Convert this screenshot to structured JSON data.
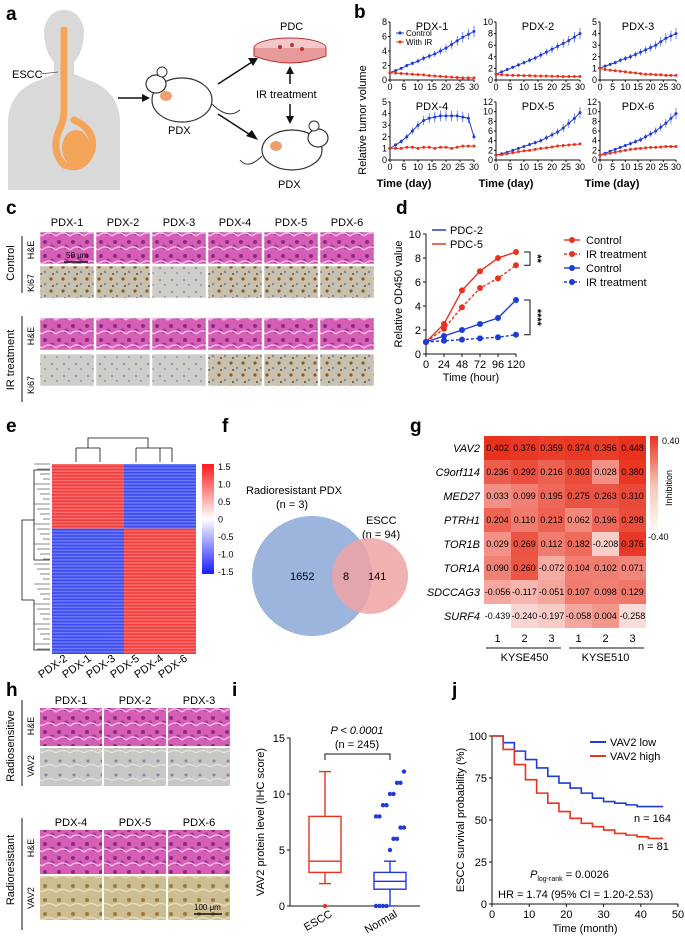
{
  "panel_labels": [
    "a",
    "b",
    "c",
    "d",
    "e",
    "f",
    "g",
    "h",
    "i",
    "j"
  ],
  "a": {
    "escc": "ESCC",
    "pdx": "PDX",
    "pdc": "PDC",
    "ir": "IR treatment",
    "pdx2": "PDX"
  },
  "colors": {
    "blue": "#1f3bd6",
    "red": "#e8321e",
    "venn_blue": "#9db5dc",
    "venn_red": "#efa3a3"
  },
  "b": {
    "ylabel": "Relative tumor volume",
    "xlabel": "Time (day)",
    "legend": [
      "Control",
      "With IR"
    ]
  },
  "c": {
    "cols": [
      "PDX-1",
      "PDX-2",
      "PDX-3",
      "PDX-4",
      "PDX-5",
      "PDX-6"
    ],
    "groups": [
      "Control",
      "IR treatment"
    ],
    "rows": [
      "H&E",
      "Ki67"
    ],
    "scale": "50 μm"
  },
  "e": {
    "cols": [
      "PDX-2",
      "PDX-1",
      "PDX-3",
      "PDX-5",
      "PDX-4",
      "PDX-6"
    ],
    "scale_ticks": [
      "1.5",
      "1.0",
      "0.5",
      "0",
      "-0.5",
      "-1.0",
      "-1.5"
    ]
  },
  "f": {
    "left_title": "Radioresistant PDX",
    "left_n": "(n = 3)",
    "right_title": "ESCC",
    "right_n": "(n = 94)",
    "left_only": "1652",
    "overlap": "8",
    "right_only": "141"
  },
  "g": {
    "genes": [
      "VAV2",
      "C9orf114",
      "MED27",
      "PTRH1",
      "TOR1B",
      "TOR1A",
      "SDCCAG3",
      "SURF4"
    ],
    "values": [
      [
        0.402,
        0.376,
        0.359,
        0.374,
        0.356,
        0.448
      ],
      [
        0.236,
        0.292,
        0.216,
        0.303,
        0.028,
        0.38
      ],
      [
        0.033,
        0.099,
        0.195,
        0.275,
        0.263,
        0.31
      ],
      [
        0.204,
        0.11,
        0.213,
        0.062,
        0.196,
        0.298
      ],
      [
        0.029,
        0.269,
        0.112,
        0.182,
        -0.208,
        0.376
      ],
      [
        0.09,
        0.26,
        -0.072,
        0.104,
        0.102,
        0.071
      ],
      [
        -0.056,
        -0.117,
        -0.051,
        0.107,
        0.098,
        0.129
      ],
      [
        -0.439,
        -0.24,
        -0.197,
        -0.058,
        0.004,
        -0.258
      ]
    ],
    "labels": [
      [
        "0.402",
        "0.376",
        "0.359",
        "0.374",
        "0.356",
        "0.448"
      ],
      [
        "0.236",
        "0.292",
        "0.216",
        "0.303",
        "0.028",
        "0.380"
      ],
      [
        "0.033",
        "0.099",
        "0.195",
        "0.275",
        "0.263",
        "0.310"
      ],
      [
        "0.204",
        "0.110",
        "0.213",
        "0.062",
        "0.196",
        "0.298"
      ],
      [
        "0.029",
        "0.269",
        "0.112",
        "0.182",
        "-0.208",
        "0.376"
      ],
      [
        "0.090",
        "0.260",
        "-0.072",
        "0.104",
        "0.102",
        "0.071"
      ],
      [
        "-0.056",
        "-0.117",
        "-0.051",
        "0.107",
        "0.098",
        "0.129"
      ],
      [
        "-0.439",
        "-0.240",
        "-0.197",
        "-0.058",
        "0.004",
        "-0.258"
      ]
    ],
    "reps": [
      "1",
      "2",
      "3",
      "1",
      "2",
      "3"
    ],
    "lines": [
      "KYSE450",
      "KYSE510"
    ],
    "scale_top": "0.40",
    "scale_bot": "-0.40",
    "scale_label": "Inhibition"
  },
  "h": {
    "top_cols": [
      "PDX-1",
      "PDX-2",
      "PDX-3"
    ],
    "bot_cols": [
      "PDX-4",
      "PDX-5",
      "PDX-6"
    ],
    "groups": [
      "Radiosensitive",
      "Radioresistant"
    ],
    "rows": [
      "H&E",
      "VAV2"
    ],
    "scale": "100 μm"
  },
  "chart_data": [
    {
      "panel": "b",
      "type": "line",
      "xlabel": "Time (day)",
      "ylabel": "Relative tumor volume",
      "series_names": [
        "Control",
        "With IR"
      ],
      "x": [
        0,
        2,
        4,
        6,
        8,
        10,
        12,
        14,
        16,
        18,
        20,
        22,
        24,
        26,
        28,
        30
      ],
      "subplots": [
        {
          "title": "PDX-1",
          "ylim": [
            0,
            8
          ],
          "yticks": [
            "0",
            "2",
            "4",
            "6",
            "8"
          ],
          "xlim": [
            0,
            30
          ],
          "xticks": [
            "0",
            "5",
            "10",
            "15",
            "20",
            "25",
            "30"
          ],
          "control": [
            1,
            1.3,
            1.6,
            2.0,
            2.3,
            2.6,
            3.0,
            3.3,
            3.6,
            4.0,
            4.4,
            4.9,
            5.4,
            5.9,
            6.3,
            6.7
          ],
          "ir": [
            1,
            0.95,
            0.9,
            0.85,
            0.8,
            0.75,
            0.7,
            0.6,
            0.55,
            0.5,
            0.45,
            0.4,
            0.35,
            0.3,
            0.3,
            0.3
          ]
        },
        {
          "title": "PDX-2",
          "ylim": [
            0,
            10
          ],
          "yticks": [
            "0",
            "2",
            "4",
            "6",
            "8",
            "10"
          ],
          "xlim": [
            0,
            30
          ],
          "xticks": [
            "0",
            "5",
            "10",
            "15",
            "20",
            "25",
            "30"
          ],
          "control": [
            1,
            1.4,
            1.8,
            2.2,
            2.6,
            3.0,
            3.4,
            3.8,
            4.3,
            4.8,
            5.3,
            5.8,
            6.3,
            6.8,
            7.4,
            8.0
          ],
          "ir": [
            1,
            0.9,
            0.85,
            0.8,
            0.8,
            0.75,
            0.75,
            0.7,
            0.7,
            0.7,
            0.65,
            0.65,
            0.6,
            0.6,
            0.6,
            0.6
          ]
        },
        {
          "title": "PDX-3",
          "ylim": [
            0,
            5
          ],
          "yticks": [
            "0",
            "1",
            "2",
            "3",
            "4",
            "5"
          ],
          "xlim": [
            0,
            30
          ],
          "xticks": [
            "0",
            "5",
            "10",
            "15",
            "20",
            "25",
            "30"
          ],
          "control": [
            1,
            1.2,
            1.35,
            1.5,
            1.7,
            1.85,
            2.0,
            2.2,
            2.4,
            2.6,
            2.8,
            3.0,
            3.3,
            3.6,
            3.8,
            4.0
          ],
          "ir": [
            1,
            0.9,
            0.85,
            0.8,
            0.75,
            0.7,
            0.65,
            0.6,
            0.55,
            0.5,
            0.5,
            0.45,
            0.45,
            0.4,
            0.4,
            0.4
          ]
        },
        {
          "title": "PDX-4",
          "ylim": [
            0,
            5
          ],
          "yticks": [
            "0",
            "1",
            "2",
            "3",
            "4",
            "5"
          ],
          "xlim": [
            0,
            30
          ],
          "xticks": [
            "0",
            "5",
            "10",
            "15",
            "20",
            "25",
            "30"
          ],
          "control": [
            1,
            1.3,
            1.6,
            2.0,
            2.5,
            3.0,
            3.4,
            3.6,
            3.7,
            3.8,
            3.8,
            3.8,
            3.8,
            3.7,
            3.6,
            2.0
          ],
          "ir": [
            1,
            1.0,
            1.0,
            1.1,
            1.1,
            1.0,
            1.1,
            1.1,
            1.0,
            1.1,
            1.1,
            1.0,
            1.1,
            1.2,
            1.2,
            1.2
          ]
        },
        {
          "title": "PDX-5",
          "ylim": [
            0,
            12
          ],
          "yticks": [
            "0",
            "2",
            "4",
            "6",
            "8",
            "10",
            "12"
          ],
          "xlim": [
            0,
            30
          ],
          "xticks": [
            "0",
            "5",
            "10",
            "15",
            "20",
            "25",
            "30"
          ],
          "control": [
            1,
            1.3,
            1.6,
            2.0,
            2.4,
            2.8,
            3.2,
            3.6,
            4.0,
            4.6,
            5.2,
            5.8,
            6.6,
            7.6,
            8.6,
            9.8
          ],
          "ir": [
            1,
            1.1,
            1.3,
            1.5,
            1.7,
            1.9,
            2.0,
            2.2,
            2.4,
            2.5,
            2.7,
            2.9,
            3.0,
            3.1,
            3.2,
            3.3
          ]
        },
        {
          "title": "PDX-6",
          "ylim": [
            0,
            12
          ],
          "yticks": [
            "0",
            "2",
            "4",
            "6",
            "8",
            "10",
            "12"
          ],
          "xlim": [
            0,
            30
          ],
          "xticks": [
            "0",
            "5",
            "10",
            "15",
            "20",
            "25",
            "30"
          ],
          "control": [
            1,
            1.4,
            1.8,
            2.2,
            2.6,
            3.0,
            3.4,
            3.8,
            4.2,
            4.8,
            5.4,
            6.0,
            6.8,
            7.6,
            8.6,
            9.6
          ],
          "ir": [
            1,
            1.2,
            1.4,
            1.6,
            1.8,
            2.0,
            2.2,
            2.3,
            2.4,
            2.5,
            2.6,
            2.6,
            2.7,
            2.8,
            2.8,
            2.8
          ]
        }
      ]
    },
    {
      "panel": "d",
      "type": "line",
      "xlabel": "Time (hour)",
      "ylabel": "Relative OD450 value",
      "x": [
        0,
        24,
        48,
        72,
        96,
        120
      ],
      "xlim": [
        0,
        120
      ],
      "ylim": [
        0,
        10
      ],
      "xticks": [
        "0",
        "24",
        "48",
        "72",
        "96",
        "120"
      ],
      "yticks": [
        "0",
        "2",
        "4",
        "6",
        "8",
        "10"
      ],
      "line_legend": [
        "PDC-2",
        "PDC-5"
      ],
      "marker_legend": [
        "Control",
        "IR treatment",
        "Control",
        "IR treatment"
      ],
      "series": [
        {
          "name": "PDC-5 Control",
          "values": [
            1,
            2.5,
            5.3,
            6.9,
            8.0,
            8.5
          ]
        },
        {
          "name": "PDC-5 IR treatment",
          "values": [
            1,
            2.1,
            3.9,
            5.5,
            6.3,
            7.4
          ]
        },
        {
          "name": "PDC-2 Control",
          "values": [
            1,
            1.5,
            2.0,
            2.5,
            3.0,
            4.5
          ]
        },
        {
          "name": "PDC-2 IR treatment",
          "values": [
            1,
            1.1,
            1.2,
            1.3,
            1.4,
            1.6
          ]
        }
      ],
      "significance": [
        "**",
        "****"
      ]
    },
    {
      "panel": "i",
      "type": "box",
      "ylabel": "VAV2 protein level (IHC score)",
      "categories": [
        "ESCC",
        "Normal"
      ],
      "ylim": [
        0,
        15
      ],
      "yticks": [
        "0",
        "5",
        "10",
        "15"
      ],
      "p_text": "P < 0.0001",
      "n_text": "(n = 245)",
      "boxes": [
        {
          "name": "ESCC",
          "min": 2,
          "q1": 3,
          "median": 4,
          "q3": 8,
          "max": 12,
          "outliers": [
            0
          ]
        },
        {
          "name": "Normal",
          "min": 0,
          "q1": 1.5,
          "median": 2.2,
          "q3": 3.0,
          "max": 4.0,
          "outliers": [
            0,
            0,
            0,
            0,
            5,
            6,
            6,
            7,
            7,
            8,
            8,
            9,
            9,
            10,
            10,
            11,
            11,
            12
          ]
        }
      ]
    },
    {
      "panel": "j",
      "type": "line",
      "xlabel": "Time (month)",
      "ylabel": "ESCC survival probability (%)",
      "xlim": [
        0,
        50
      ],
      "ylim": [
        0,
        100
      ],
      "xticks": [
        "0",
        "10",
        "20",
        "30",
        "40",
        "50"
      ],
      "yticks": [
        "0",
        "25",
        "50",
        "75",
        "100"
      ],
      "legend": [
        "VAV2 low",
        "VAV2 high"
      ],
      "series": [
        {
          "name": "VAV2 low",
          "x": [
            0,
            3,
            6,
            9,
            12,
            15,
            18,
            21,
            24,
            27,
            30,
            33,
            36,
            39,
            42,
            45,
            46
          ],
          "values": [
            100,
            96,
            91,
            86,
            81,
            76,
            72,
            69,
            66,
            63,
            61,
            60,
            59,
            58,
            58,
            58,
            58
          ]
        },
        {
          "name": "VAV2 high",
          "x": [
            0,
            3,
            6,
            9,
            12,
            15,
            18,
            21,
            24,
            27,
            30,
            33,
            36,
            39,
            42,
            45,
            46
          ],
          "values": [
            100,
            92,
            83,
            74,
            66,
            60,
            55,
            51,
            48,
            46,
            44,
            42,
            41,
            40,
            39,
            39,
            39
          ]
        }
      ],
      "annotations": [
        "n = 164",
        "n = 81",
        "= 0.0026",
        "HR = 1.74 (95% CI = 1.20-2.53)"
      ],
      "p_label": "P",
      "p_sub": "log-rank"
    }
  ]
}
